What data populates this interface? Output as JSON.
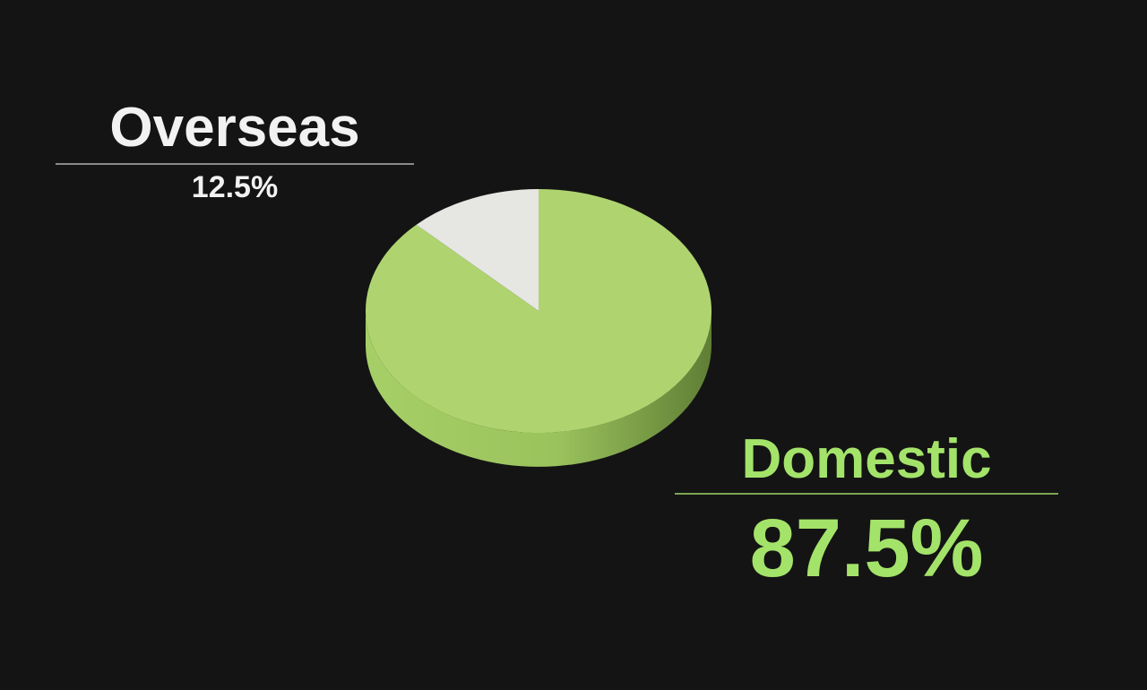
{
  "chart_data": {
    "type": "pie",
    "slices": [
      {
        "label": "Overseas",
        "value": 12.5,
        "value_label": "12.5%",
        "color": "#e6e6e3",
        "side_color": "#bdbdb9"
      },
      {
        "label": "Domestic",
        "value": 87.5,
        "value_label": "87.5%",
        "color": "#afd46f",
        "side_color": "#7fa44a"
      }
    ],
    "accent_color": "#a4e36a",
    "background": "#141414",
    "style": "3d-tilted"
  }
}
